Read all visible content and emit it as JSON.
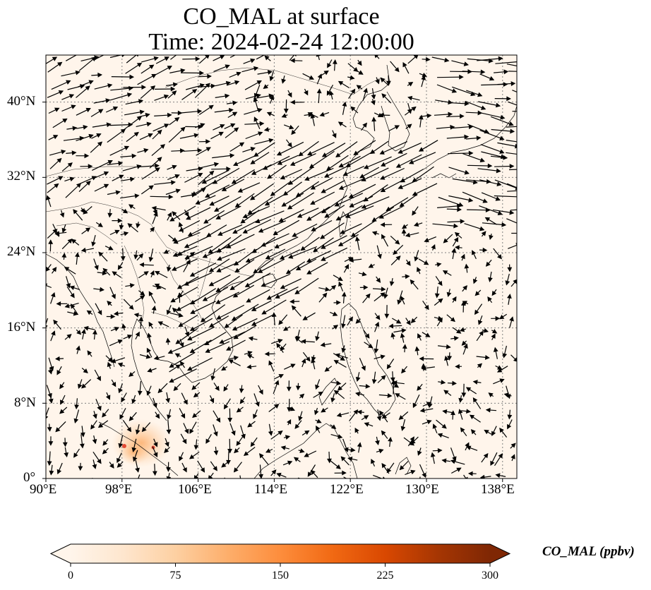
{
  "title_line1": "CO_MAL at surface",
  "title_line2": "Time: 2024-02-24 12:00:00",
  "map": {
    "projection": "PlateCarree",
    "lon_range": [
      90,
      139.5
    ],
    "lat_range": [
      0,
      45
    ],
    "background_color": "#fff5eb",
    "gridlines": "dotted",
    "x_ticks": [
      "90°E",
      "98°E",
      "106°E",
      "114°E",
      "122°E",
      "130°E",
      "138°E"
    ],
    "y_ticks": [
      "0°",
      "8°N",
      "16°N",
      "24°N",
      "32°N",
      "40°N"
    ],
    "hotspot_colors": [
      "#fdd0a2",
      "#fdae6b",
      "#e34a33"
    ]
  },
  "colorbar": {
    "label": "CO_MAL (ppbv)",
    "ticks": [
      "0",
      "75",
      "150",
      "225",
      "300"
    ],
    "range": [
      0,
      300
    ],
    "extend": "both",
    "colors": [
      "#fff5eb",
      "#fee6ce",
      "#fdd0a2",
      "#fdae6b",
      "#fd8d3c",
      "#f16913",
      "#d94801",
      "#a63603",
      "#7f2704"
    ]
  }
}
